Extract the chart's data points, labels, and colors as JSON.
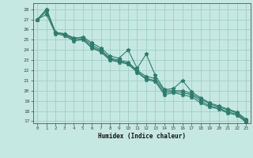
{
  "xlabel": "Humidex (Indice chaleur)",
  "ylabel": "",
  "bg_color": "#c6e8e2",
  "grid_color": "#9ecec6",
  "line_color": "#2e7d6e",
  "xlim": [
    -0.5,
    23.5
  ],
  "ylim": [
    16.8,
    28.6
  ],
  "yticks": [
    17,
    18,
    19,
    20,
    21,
    22,
    23,
    24,
    25,
    26,
    27,
    28
  ],
  "xticks": [
    0,
    1,
    2,
    3,
    4,
    5,
    6,
    7,
    8,
    9,
    10,
    11,
    12,
    13,
    14,
    15,
    16,
    17,
    18,
    19,
    20,
    21,
    22,
    23
  ],
  "line1": [
    27.0,
    28.0,
    25.7,
    25.6,
    25.1,
    25.3,
    24.7,
    24.2,
    23.4,
    23.2,
    24.0,
    22.2,
    23.6,
    21.5,
    20.1,
    20.2,
    21.0,
    19.9,
    19.3,
    18.8,
    18.5,
    18.2,
    17.9,
    17.2
  ],
  "line2": [
    27.0,
    28.0,
    25.7,
    25.6,
    25.2,
    25.2,
    24.5,
    24.0,
    23.2,
    23.0,
    22.8,
    22.0,
    21.4,
    21.2,
    20.0,
    20.0,
    20.0,
    19.7,
    19.2,
    18.7,
    18.4,
    18.1,
    17.8,
    17.1
  ],
  "line3": [
    27.0,
    27.8,
    25.7,
    25.5,
    25.0,
    25.1,
    24.3,
    23.9,
    23.1,
    22.9,
    22.7,
    21.9,
    21.2,
    21.0,
    19.8,
    19.9,
    19.8,
    19.6,
    19.0,
    18.5,
    18.3,
    17.9,
    17.7,
    17.0
  ],
  "line4": [
    27.0,
    27.5,
    25.6,
    25.4,
    24.9,
    25.0,
    24.2,
    23.8,
    23.0,
    22.8,
    22.6,
    21.8,
    21.1,
    20.9,
    19.6,
    19.8,
    19.6,
    19.4,
    18.8,
    18.4,
    18.2,
    17.8,
    17.6,
    16.9
  ]
}
